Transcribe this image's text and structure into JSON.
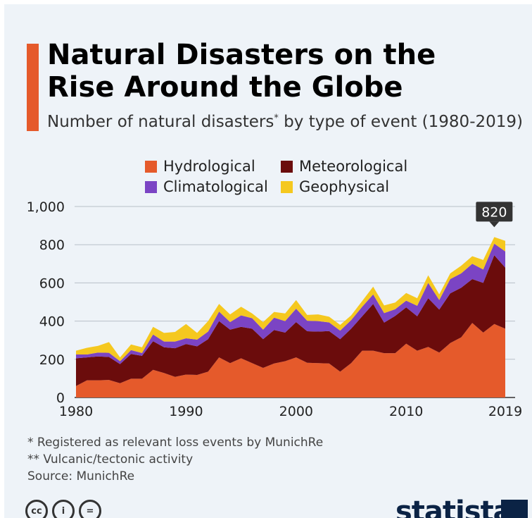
{
  "header": {
    "title": "Natural Disasters on the Rise Around the Globe",
    "subtitle": "Number of natural disasters",
    "subtitle_mark": "*",
    "subtitle_rest": " by type of event (1980-2019)"
  },
  "footnotes": {
    "note1": "*   Registered as relevant loss events by MunichRe",
    "note2": "** Vulcanic/tectonic activity",
    "source": "Source: MunichRe"
  },
  "branding": {
    "logo": "statista",
    "license_icons": [
      "cc",
      "i",
      "="
    ]
  },
  "chart_data": {
    "type": "area",
    "stacked": true,
    "title": "Natural Disasters on the Rise Around the Globe",
    "subtitle": "Number of natural disasters* by type of event (1980-2019)",
    "xlabel": "",
    "ylabel": "",
    "ylim": [
      0,
      1000
    ],
    "yticks": [
      "0",
      "200",
      "400",
      "600",
      "800",
      "1,000"
    ],
    "xticks": [
      "1980",
      "1990",
      "2000",
      "2010",
      "2019"
    ],
    "grid": true,
    "legend": "top",
    "x": [
      1980,
      1981,
      1982,
      1983,
      1984,
      1985,
      1986,
      1987,
      1988,
      1989,
      1990,
      1991,
      1992,
      1993,
      1994,
      1995,
      1996,
      1997,
      1998,
      1999,
      2000,
      2001,
      2002,
      2003,
      2004,
      2005,
      2006,
      2007,
      2008,
      2009,
      2010,
      2011,
      2012,
      2013,
      2014,
      2015,
      2016,
      2017,
      2018,
      2019
    ],
    "series": [
      {
        "name": "Hydrological",
        "color": "#e55a2b",
        "values": [
          60,
          90,
          90,
          92,
          75,
          98,
          98,
          145,
          128,
          108,
          120,
          118,
          135,
          210,
          180,
          205,
          180,
          155,
          178,
          190,
          210,
          182,
          180,
          178,
          135,
          180,
          245,
          245,
          232,
          232,
          282,
          245,
          265,
          235,
          285,
          315,
          390,
          340,
          385,
          360
        ]
      },
      {
        "name": "Meteorological",
        "color": "#6b0c0c",
        "values": [
          145,
          120,
          125,
          120,
          100,
          130,
          120,
          150,
          135,
          150,
          160,
          150,
          170,
          190,
          175,
          165,
          180,
          150,
          175,
          150,
          185,
          165,
          165,
          170,
          170,
          180,
          180,
          245,
          160,
          195,
          190,
          180,
          255,
          225,
          260,
          260,
          230,
          260,
          360,
          320
        ]
      },
      {
        "name": "Climatological",
        "color": "#7b44c4",
        "values": [
          20,
          15,
          20,
          22,
          15,
          20,
          15,
          35,
          30,
          35,
          30,
          35,
          40,
          50,
          40,
          60,
          55,
          50,
          65,
          60,
          70,
          55,
          55,
          45,
          45,
          45,
          50,
          50,
          50,
          35,
          35,
          55,
          80,
          50,
          75,
          75,
          80,
          70,
          60,
          85
        ]
      },
      {
        "name": "Geophysical",
        "color": "#f5c81f",
        "values": [
          20,
          35,
          35,
          56,
          20,
          30,
          30,
          40,
          45,
          50,
          75,
          35,
          55,
          40,
          40,
          45,
          25,
          40,
          30,
          40,
          45,
          30,
          35,
          30,
          30,
          25,
          30,
          40,
          40,
          35,
          40,
          40,
          40,
          30,
          30,
          40,
          40,
          50,
          35,
          55
        ]
      }
    ],
    "annotation": {
      "x": 2018,
      "label": "820"
    }
  }
}
